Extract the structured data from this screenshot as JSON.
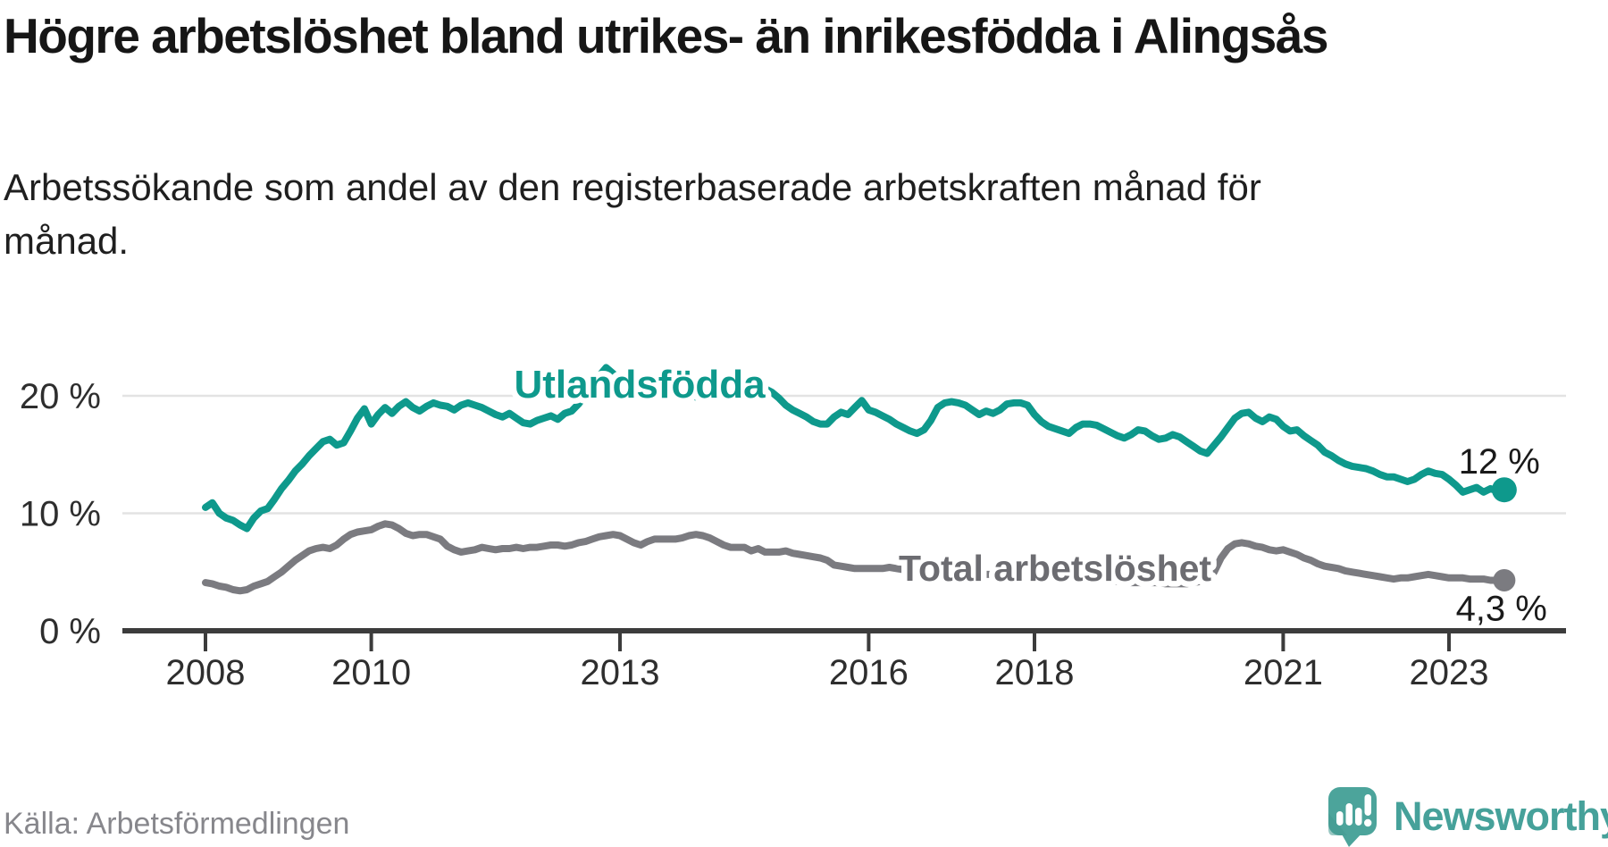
{
  "header": {
    "title": "Högre arbetslöshet bland utrikes- än inrikesfödda i Alingsås",
    "subtitle": "Arbetssökande som andel av den registerbaserade arbetskraften månad för månad."
  },
  "footer": {
    "source": "Källa: Arbetsförmedlingen",
    "brand_name": "Newsworthy"
  },
  "colors": {
    "series_utlandsfodda": "#0E998C",
    "series_total": "#7B7B80",
    "total_label_text": "#6C6C71",
    "grid": "#E3E3E3",
    "axis": "#3C3C3C",
    "tick_label": "#2E2E2E",
    "value_label": "#1A1A1A",
    "brand_teal": "#46A19A",
    "background": "#FFFFFF"
  },
  "chart_data": {
    "type": "line",
    "title": "Högre arbetslöshet bland utrikes- än inrikesfödda i Alingsås",
    "unit": "%",
    "t0": 2008.0,
    "dt_years": 0.0833333,
    "x_axis": {
      "range": [
        2008,
        2023.75
      ],
      "ticks": [
        {
          "t": 2008,
          "label": "2008"
        },
        {
          "t": 2010,
          "label": "2010"
        },
        {
          "t": 2013,
          "label": "2013"
        },
        {
          "t": 2016,
          "label": "2016"
        },
        {
          "t": 2018,
          "label": "2018"
        },
        {
          "t": 2021,
          "label": "2021"
        },
        {
          "t": 2023,
          "label": "2023"
        }
      ]
    },
    "y_axis": {
      "range": [
        0,
        22.5
      ],
      "grid": true,
      "ticks": [
        {
          "v": 0,
          "label": "0 %"
        },
        {
          "v": 10,
          "label": "10 %"
        },
        {
          "v": 20,
          "label": "20 %"
        }
      ]
    },
    "legend_position": "inline-labels",
    "series": [
      {
        "name": "Utlandsfödda",
        "end_label": "12 %",
        "color_key": "series_utlandsfodda",
        "values": [
          10.5,
          10.9,
          10.0,
          9.6,
          9.4,
          9.0,
          8.7,
          9.6,
          10.2,
          10.4,
          11.2,
          12.1,
          12.8,
          13.6,
          14.2,
          14.9,
          15.5,
          16.1,
          16.3,
          15.8,
          16.0,
          17.0,
          18.1,
          18.9,
          17.6,
          18.4,
          19.0,
          18.5,
          19.1,
          19.5,
          19.0,
          18.7,
          19.1,
          19.4,
          19.2,
          19.1,
          18.8,
          19.2,
          19.4,
          19.2,
          19.0,
          18.7,
          18.4,
          18.2,
          18.5,
          18.1,
          17.7,
          17.6,
          17.9,
          18.1,
          18.3,
          18.0,
          18.5,
          18.7,
          19.3,
          20.1,
          20.9,
          21.7,
          22.4,
          21.9,
          21.4,
          21.0,
          20.7,
          20.4,
          20.2,
          20.3,
          20.5,
          20.6,
          20.4,
          20.2,
          20.0,
          19.9,
          19.8,
          19.9,
          20.0,
          20.0,
          20.1,
          20.1,
          20.0,
          20.1,
          20.3,
          20.6,
          20.3,
          19.8,
          19.2,
          18.8,
          18.5,
          18.2,
          17.8,
          17.6,
          17.6,
          18.2,
          18.6,
          18.4,
          19.0,
          19.6,
          18.8,
          18.6,
          18.3,
          18.0,
          17.6,
          17.3,
          17.0,
          16.8,
          17.1,
          17.9,
          19.0,
          19.4,
          19.5,
          19.4,
          19.2,
          18.8,
          18.4,
          18.7,
          18.5,
          18.8,
          19.3,
          19.4,
          19.4,
          19.2,
          18.4,
          17.8,
          17.4,
          17.2,
          17.0,
          16.8,
          17.3,
          17.6,
          17.6,
          17.5,
          17.2,
          16.9,
          16.6,
          16.4,
          16.7,
          17.1,
          17.0,
          16.6,
          16.3,
          16.4,
          16.7,
          16.5,
          16.1,
          15.7,
          15.3,
          15.1,
          15.8,
          16.5,
          17.3,
          18.1,
          18.5,
          18.6,
          18.1,
          17.8,
          18.2,
          18.0,
          17.4,
          17.0,
          17.1,
          16.6,
          16.2,
          15.8,
          15.2,
          14.9,
          14.5,
          14.2,
          14.0,
          13.9,
          13.8,
          13.6,
          13.3,
          13.1,
          13.1,
          12.9,
          12.7,
          12.9,
          13.3,
          13.6,
          13.4,
          13.3,
          12.9,
          12.4,
          11.8,
          12.0,
          12.2,
          11.8,
          12.1,
          11.9,
          12.0
        ]
      },
      {
        "name": "Total arbetslöshet",
        "end_label": "4,3 %",
        "color_key": "series_total",
        "values": [
          4.1,
          4.0,
          3.8,
          3.7,
          3.5,
          3.4,
          3.5,
          3.8,
          4.0,
          4.2,
          4.6,
          5.0,
          5.5,
          6.0,
          6.4,
          6.8,
          7.0,
          7.1,
          7.0,
          7.3,
          7.8,
          8.2,
          8.4,
          8.5,
          8.6,
          8.9,
          9.1,
          9.0,
          8.7,
          8.3,
          8.1,
          8.2,
          8.2,
          8.0,
          7.8,
          7.2,
          6.9,
          6.7,
          6.8,
          6.9,
          7.1,
          7.0,
          6.9,
          7.0,
          7.0,
          7.1,
          7.0,
          7.1,
          7.1,
          7.2,
          7.3,
          7.3,
          7.2,
          7.3,
          7.5,
          7.6,
          7.8,
          8.0,
          8.1,
          8.2,
          8.1,
          7.8,
          7.5,
          7.3,
          7.6,
          7.8,
          7.8,
          7.8,
          7.8,
          7.9,
          8.1,
          8.2,
          8.1,
          7.9,
          7.6,
          7.3,
          7.1,
          7.1,
          7.1,
          6.8,
          7.0,
          6.7,
          6.7,
          6.7,
          6.8,
          6.6,
          6.5,
          6.4,
          6.3,
          6.2,
          6.0,
          5.6,
          5.5,
          5.4,
          5.3,
          5.3,
          5.3,
          5.3,
          5.3,
          5.4,
          5.3,
          5.2,
          5.1,
          5.0,
          4.9,
          4.8,
          4.8,
          4.8,
          4.9,
          4.9,
          4.9,
          4.9,
          4.85,
          4.8,
          4.8,
          4.78,
          4.75,
          4.7,
          4.68,
          4.65,
          4.6,
          4.58,
          4.55,
          4.5,
          4.48,
          4.45,
          4.4,
          4.38,
          4.35,
          4.3,
          4.28,
          4.25,
          4.2,
          4.15,
          4.1,
          4.1,
          4.1,
          4.1,
          4.1,
          4.0,
          4.0,
          4.0,
          4.0,
          4.1,
          4.2,
          4.3,
          5.0,
          6.2,
          7.0,
          7.4,
          7.5,
          7.4,
          7.2,
          7.1,
          6.9,
          6.8,
          6.9,
          6.7,
          6.5,
          6.2,
          6.0,
          5.7,
          5.5,
          5.4,
          5.3,
          5.1,
          5.0,
          4.9,
          4.8,
          4.7,
          4.6,
          4.5,
          4.4,
          4.5,
          4.5,
          4.6,
          4.7,
          4.8,
          4.7,
          4.6,
          4.5,
          4.5,
          4.5,
          4.4,
          4.4,
          4.4,
          4.3,
          4.3,
          4.3
        ]
      }
    ]
  }
}
